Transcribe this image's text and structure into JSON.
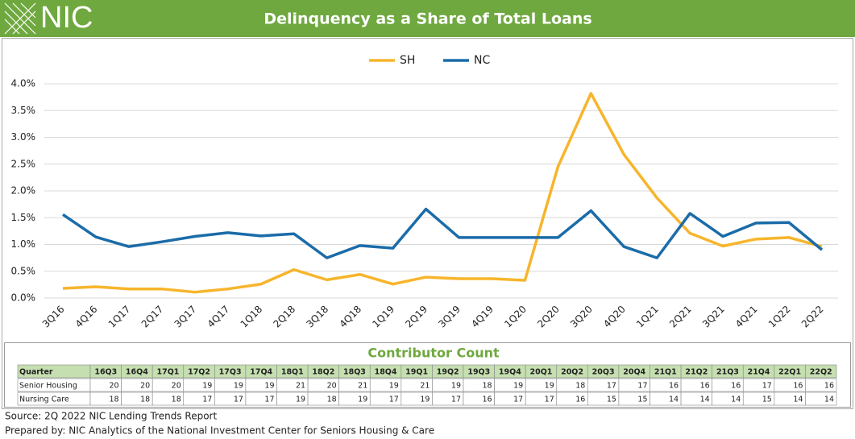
{
  "logo": "NIC",
  "chart_data": {
    "type": "line",
    "title": "Delinquency as a Share of Total Loans",
    "categories": [
      "3Q16",
      "4Q16",
      "1Q17",
      "2Q17",
      "3Q17",
      "4Q17",
      "1Q18",
      "2Q18",
      "3Q18",
      "4Q18",
      "1Q19",
      "2Q19",
      "3Q19",
      "4Q19",
      "1Q20",
      "2Q20",
      "3Q20",
      "4Q20",
      "1Q21",
      "2Q21",
      "3Q21",
      "4Q21",
      "1Q22",
      "2Q22"
    ],
    "series": [
      {
        "name": "SH",
        "color": "#f7b52c",
        "values": [
          0.18,
          0.21,
          0.17,
          0.17,
          0.11,
          0.17,
          0.26,
          0.53,
          0.34,
          0.44,
          0.26,
          0.39,
          0.36,
          0.36,
          0.33,
          2.45,
          3.82,
          2.68,
          1.87,
          1.21,
          0.97,
          1.1,
          1.13,
          0.96
        ]
      },
      {
        "name": "NC",
        "color": "#1b6ca8",
        "values": [
          1.56,
          1.14,
          0.96,
          1.05,
          1.15,
          1.22,
          1.16,
          1.2,
          0.75,
          0.98,
          0.93,
          1.66,
          1.13,
          1.13,
          1.13,
          1.13,
          1.63,
          0.96,
          0.75,
          1.58,
          1.15,
          1.4,
          1.41,
          0.9
        ]
      }
    ],
    "ylim": [
      0,
      4
    ],
    "yticks": [
      {
        "value": 0,
        "label": "0.0%"
      },
      {
        "value": 0.5,
        "label": "0.5%"
      },
      {
        "value": 1,
        "label": "1.0%"
      },
      {
        "value": 1.5,
        "label": "1.5%"
      },
      {
        "value": 2,
        "label": "2.0%"
      },
      {
        "value": 2.5,
        "label": "2.5%"
      },
      {
        "value": 3,
        "label": "3.0%"
      },
      {
        "value": 3.5,
        "label": "3.5%"
      },
      {
        "value": 4,
        "label": "4.0%"
      }
    ],
    "grid": true,
    "legend": "top"
  },
  "contributor_table": {
    "title": "Contributor Count",
    "header": [
      "Quarter",
      "16Q3",
      "16Q4",
      "17Q1",
      "17Q2",
      "17Q3",
      "17Q4",
      "18Q1",
      "18Q2",
      "18Q3",
      "18Q4",
      "19Q1",
      "19Q2",
      "19Q3",
      "19Q4",
      "20Q1",
      "20Q2",
      "20Q3",
      "20Q4",
      "21Q1",
      "21Q2",
      "21Q3",
      "21Q4",
      "22Q1",
      "22Q2"
    ],
    "rows": [
      [
        "Senior Housing",
        20,
        20,
        20,
        19,
        19,
        19,
        21,
        20,
        21,
        19,
        21,
        19,
        18,
        19,
        19,
        18,
        17,
        17,
        16,
        16,
        16,
        17,
        16,
        16
      ],
      [
        "Nursing Care",
        18,
        18,
        18,
        17,
        17,
        17,
        19,
        18,
        19,
        17,
        19,
        17,
        16,
        17,
        17,
        16,
        15,
        15,
        14,
        14,
        14,
        15,
        14,
        14
      ]
    ]
  },
  "footer": [
    "Source: 2Q 2022 NIC Lending Trends Report",
    "Prepared by: NIC Analytics of the National Investment Center for Seniors Housing & Care"
  ]
}
